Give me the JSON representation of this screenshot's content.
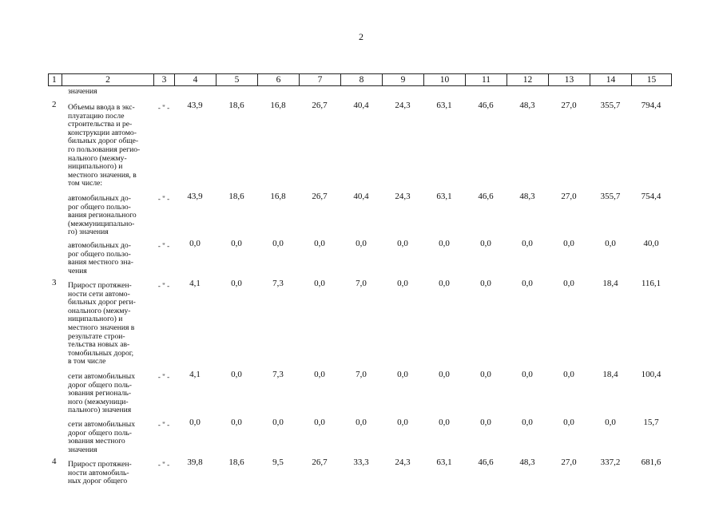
{
  "page_number": "2",
  "table": {
    "header": [
      "1",
      "2",
      "3",
      "4",
      "5",
      "6",
      "7",
      "8",
      "9",
      "10",
      "11",
      "12",
      "13",
      "14",
      "15"
    ],
    "continuation": "значения",
    "rows": [
      {
        "number": "2",
        "description": [
          "Объемы ввода в экс-",
          "плуатацию после",
          "строительства и ре-",
          "конструкции автомо-",
          "бильных дорог обще-",
          "го пользования регио-",
          "нального (межму-",
          "ниципального) и",
          "местного значения, в",
          "том числе:"
        ],
        "unit": "- \" -",
        "values": [
          "43,9",
          "18,6",
          "16,8",
          "26,7",
          "40,4",
          "24,3",
          "63,1",
          "46,6",
          "48,3",
          "27,0",
          "355,7",
          "794,4"
        ]
      },
      {
        "description": [
          "автомобильных до-",
          "рог общего пользо-",
          "вания регионального",
          "(межмуниципально-",
          "го) значения"
        ],
        "unit": "- \" -",
        "values": [
          "43,9",
          "18,6",
          "16,8",
          "26,7",
          "40,4",
          "24,3",
          "63,1",
          "46,6",
          "48,3",
          "27,0",
          "355,7",
          "754,4"
        ]
      },
      {
        "description": [
          "автомобильных до-",
          "рог общего пользо-",
          "вания местного зна-",
          "чения"
        ],
        "unit": "- \" -",
        "values": [
          "0,0",
          "0,0",
          "0,0",
          "0,0",
          "0,0",
          "0,0",
          "0,0",
          "0,0",
          "0,0",
          "0,0",
          "0,0",
          "40,0"
        ]
      },
      {
        "number": "3",
        "description": [
          "Прирост протяжен-",
          "ности сети автомо-",
          "бильных дорог реги-",
          "онального (межму-",
          "ниципального) и",
          "местного значения в",
          "результате строи-",
          "тельства новых ав-",
          "томобильных дорог,",
          "в том числе"
        ],
        "unit": "- \" -",
        "values": [
          "4,1",
          "0,0",
          "7,3",
          "0,0",
          "7,0",
          "0,0",
          "0,0",
          "0,0",
          "0,0",
          "0,0",
          "18,4",
          "116,1"
        ]
      },
      {
        "description": [
          "сети автомобильных",
          "дорог общего поль-",
          "зования региональ-",
          "ного (межмуници-",
          "пального) значения"
        ],
        "unit": "- \" -",
        "values": [
          "4,1",
          "0,0",
          "7,3",
          "0,0",
          "7,0",
          "0,0",
          "0,0",
          "0,0",
          "0,0",
          "0,0",
          "18,4",
          "100,4"
        ]
      },
      {
        "description": [
          "сети автомобильных",
          "дорог общего поль-",
          "зования местного",
          "значения"
        ],
        "unit": "- \" -",
        "values": [
          "0,0",
          "0,0",
          "0,0",
          "0,0",
          "0,0",
          "0,0",
          "0,0",
          "0,0",
          "0,0",
          "0,0",
          "0,0",
          "15,7"
        ]
      },
      {
        "number": "4",
        "description": [
          "Прирост протяжен-",
          "ности автомобиль-",
          "ных дорог общего"
        ],
        "unit": "- \" -",
        "values": [
          "39,8",
          "18,6",
          "9,5",
          "26,7",
          "33,3",
          "24,3",
          "63,1",
          "46,6",
          "48,3",
          "27,0",
          "337,2",
          "681,6"
        ]
      }
    ]
  }
}
